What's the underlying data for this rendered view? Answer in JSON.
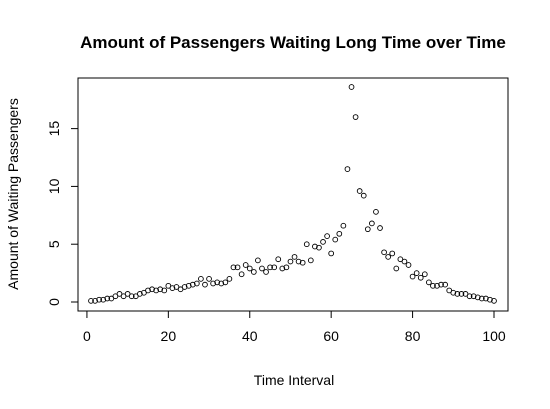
{
  "chart_data": {
    "type": "scatter",
    "title": "Amount of Passengers Waiting Long Time over Time",
    "xlabel": "Time Interval",
    "ylabel": "Amount of Waiting Passengers",
    "xlim": [
      1,
      100
    ],
    "ylim": [
      0,
      18.6
    ],
    "xticks": [
      0,
      20,
      40,
      60,
      80,
      100
    ],
    "yticks": [
      0,
      5,
      10,
      15
    ],
    "grid": false,
    "legend": "none",
    "x": [
      1,
      2,
      3,
      4,
      5,
      6,
      7,
      8,
      9,
      10,
      11,
      12,
      13,
      14,
      15,
      16,
      17,
      18,
      19,
      20,
      21,
      22,
      23,
      24,
      25,
      26,
      27,
      28,
      29,
      30,
      31,
      32,
      33,
      34,
      35,
      36,
      37,
      38,
      39,
      40,
      41,
      42,
      43,
      44,
      45,
      46,
      47,
      48,
      49,
      50,
      51,
      52,
      53,
      54,
      55,
      56,
      57,
      58,
      59,
      60,
      61,
      62,
      63,
      64,
      65,
      66,
      67,
      68,
      69,
      70,
      71,
      72,
      73,
      74,
      75,
      76,
      77,
      78,
      79,
      80,
      81,
      82,
      83,
      84,
      85,
      86,
      87,
      88,
      89,
      90,
      91,
      92,
      93,
      94,
      95,
      96,
      97,
      98,
      99,
      100
    ],
    "y": [
      0.1,
      0.1,
      0.2,
      0.2,
      0.3,
      0.3,
      0.5,
      0.7,
      0.5,
      0.7,
      0.5,
      0.5,
      0.7,
      0.8,
      1.0,
      1.1,
      1.0,
      1.1,
      1.0,
      1.4,
      1.2,
      1.3,
      1.1,
      1.3,
      1.4,
      1.5,
      1.6,
      2.0,
      1.5,
      2.0,
      1.6,
      1.7,
      1.6,
      1.7,
      2.0,
      3.0,
      3.0,
      2.4,
      3.2,
      2.9,
      2.6,
      3.6,
      2.9,
      2.6,
      3.0,
      3.0,
      3.7,
      2.9,
      3.0,
      3.5,
      3.9,
      3.5,
      3.4,
      5.0,
      3.6,
      4.8,
      4.7,
      5.2,
      5.7,
      4.2,
      5.4,
      5.9,
      6.6,
      11.5,
      18.6,
      16.0,
      9.6,
      9.2,
      6.3,
      6.8,
      7.8,
      6.4,
      4.3,
      3.9,
      4.2,
      2.9,
      3.7,
      3.5,
      3.2,
      2.2,
      2.5,
      2.1,
      2.4,
      1.7,
      1.4,
      1.4,
      1.5,
      1.5,
      1.0,
      0.8,
      0.7,
      0.7,
      0.7,
      0.5,
      0.5,
      0.4,
      0.3,
      0.3,
      0.2,
      0.1
    ],
    "marker": "open-circle",
    "colors": {
      "point_stroke": "#000000",
      "background": "#ffffff"
    }
  }
}
